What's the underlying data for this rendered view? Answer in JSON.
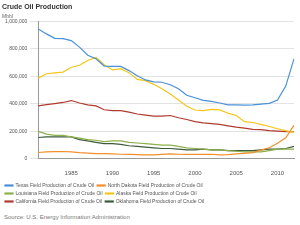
{
  "chart_data": {
    "type": "line",
    "title": "Crude Oil Production",
    "y_label": "Mbbl",
    "source": "Source: U.S. Energy Information Administration",
    "categories": [
      null,
      null,
      null,
      null,
      "1985",
      null,
      null,
      null,
      null,
      "1990",
      null,
      null,
      null,
      null,
      "1995",
      null,
      null,
      null,
      null,
      "2000",
      null,
      null,
      null,
      null,
      "2005",
      null,
      null,
      null,
      null,
      "2010",
      null,
      null
    ],
    "series": [
      {
        "name": "Texas Field Production of Crude Oil",
        "color": "#4a90d9",
        "values": [
          945000,
          909000,
          877000,
          875000,
          860000,
          813000,
          754000,
          728000,
          675000,
          672000,
          672000,
          642000,
          604000,
          574000,
          560000,
          557000,
          539000,
          510000,
          462000,
          444000,
          425000,
          418000,
          406000,
          393000,
          392000,
          391000,
          392000,
          398000,
          403000,
          428000,
          529000,
          727000
        ]
      },
      {
        "name": "North Dakota Field Production of Crude Oil",
        "color": "#f28e2b",
        "values": [
          46000,
          51000,
          52000,
          53000,
          51000,
          45000,
          41000,
          38000,
          37000,
          36000,
          33000,
          32000,
          31000,
          28000,
          29000,
          32000,
          36000,
          33000,
          32000,
          33000,
          32000,
          33000,
          29000,
          31000,
          36000,
          40000,
          45000,
          63000,
          80000,
          113000,
          153000,
          243000
        ]
      },
      {
        "name": "Louisiana Field Production of Crude Oil",
        "color": "#8cb04a",
        "values": [
          200000,
          180000,
          170000,
          170000,
          160000,
          150000,
          140000,
          135000,
          125000,
          130000,
          130000,
          120000,
          115000,
          110000,
          105000,
          100000,
          100000,
          90000,
          80000,
          75000,
          70000,
          65000,
          65000,
          60000,
          55000,
          50000,
          50000,
          50000,
          60000,
          70000,
          70000,
          70000
        ]
      },
      {
        "name": "Alaska Field Production of Crude Oil",
        "color": "#f5c518",
        "values": [
          587000,
          619000,
          626000,
          631000,
          666000,
          681000,
          716000,
          738000,
          684000,
          647000,
          656000,
          627000,
          578000,
          569000,
          542000,
          510000,
          472000,
          428000,
          383000,
          355000,
          351000,
          359000,
          356000,
          332000,
          315000,
          270000,
          264000,
          250000,
          235000,
          219000,
          205000,
          192000
        ]
      },
      {
        "name": "California Field Production of Crude Oil",
        "color": "#b03a2e",
        "values": [
          385000,
          394000,
          402000,
          410000,
          424000,
          406000,
          392000,
          385000,
          357000,
          350000,
          351000,
          340000,
          326000,
          318000,
          311000,
          310000,
          315000,
          299000,
          286000,
          271000,
          261000,
          256000,
          250000,
          240000,
          230000,
          223000,
          214000,
          213000,
          205000,
          201000,
          198000,
          197000
        ]
      },
      {
        "name": "Oklahoma Field Production of Crude Oil",
        "color": "#3d5a3d",
        "values": [
          155000,
          160000,
          160000,
          160000,
          160000,
          140000,
          130000,
          120000,
          110000,
          110000,
          105000,
          95000,
          90000,
          85000,
          80000,
          75000,
          75000,
          70000,
          65000,
          65000,
          70000,
          65000,
          65000,
          60000,
          60000,
          60000,
          60000,
          65000,
          70000,
          70000,
          75000,
          90000
        ]
      }
    ],
    "ylim": [
      0,
      1000000
    ],
    "yticks": [
      0,
      {
        "value": 200000,
        "label": "200,000"
      },
      {
        "value": 400000,
        "label": "400,000"
      },
      {
        "value": 600000,
        "label": "600,000"
      },
      {
        "value": 800000,
        "label": "800,000"
      },
      {
        "value": 1000000,
        "label": "1,000,000"
      }
    ],
    "grid": true,
    "legend": "bottom"
  }
}
